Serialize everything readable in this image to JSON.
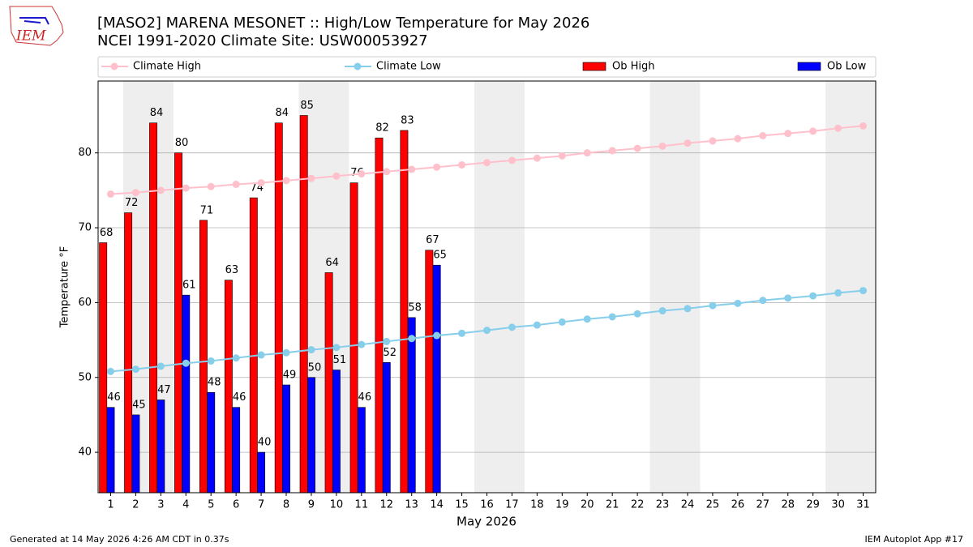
{
  "chart_data": {
    "type": "bar_line",
    "logo_text": "IEM",
    "title": "[MASO2] MARENA MESONET :: High/Low Temperature for May 2026",
    "subtitle": "NCEI 1991-2020 Climate Site: USW00053927",
    "ylabel": "Temperature °F",
    "xlabel": "May 2026",
    "footer_left": "Generated at 14 May 2026 4:26 AM CDT in 0.37s",
    "footer_right": "IEM Autoplot App #17",
    "x": [
      1,
      2,
      3,
      4,
      5,
      6,
      7,
      8,
      9,
      10,
      11,
      12,
      13,
      14,
      15,
      16,
      17,
      18,
      19,
      20,
      21,
      22,
      23,
      24,
      25,
      26,
      27,
      28,
      29,
      30,
      31
    ],
    "xlim": [
      0.5,
      31.5
    ],
    "ylim": [
      34.6,
      89.6
    ],
    "yticks": [
      40,
      50,
      60,
      70,
      80
    ],
    "grid": true,
    "shaded_days": [
      2,
      3,
      9,
      10,
      16,
      17,
      23,
      24,
      30,
      31
    ],
    "series": [
      {
        "name": "Climate High",
        "kind": "line",
        "color": "#ffc0cb",
        "values": [
          74.5,
          74.7,
          75.0,
          75.3,
          75.5,
          75.8,
          76.0,
          76.3,
          76.6,
          76.9,
          77.2,
          77.5,
          77.8,
          78.1,
          78.4,
          78.7,
          79.0,
          79.3,
          79.6,
          80.0,
          80.3,
          80.6,
          80.9,
          81.3,
          81.6,
          81.9,
          82.3,
          82.6,
          82.9,
          83.3,
          83.6
        ]
      },
      {
        "name": "Climate Low",
        "kind": "line",
        "color": "#87ceeb",
        "values": [
          50.8,
          51.1,
          51.5,
          51.9,
          52.2,
          52.6,
          53.0,
          53.3,
          53.7,
          54.0,
          54.4,
          54.8,
          55.2,
          55.6,
          55.9,
          56.3,
          56.7,
          57.0,
          57.4,
          57.8,
          58.1,
          58.5,
          58.9,
          59.2,
          59.6,
          59.9,
          60.3,
          60.6,
          60.9,
          61.3,
          61.6
        ]
      },
      {
        "name": "Ob High",
        "kind": "bar",
        "color": "#ff0000",
        "values": [
          68,
          72,
          84,
          80,
          71,
          63,
          74,
          84,
          85,
          64,
          76,
          82,
          83,
          67,
          null,
          null,
          null,
          null,
          null,
          null,
          null,
          null,
          null,
          null,
          null,
          null,
          null,
          null,
          null,
          null,
          null
        ]
      },
      {
        "name": "Ob Low",
        "kind": "bar",
        "color": "#0000ff",
        "values": [
          46,
          45,
          47,
          61,
          48,
          46,
          40,
          49,
          50,
          51,
          46,
          52,
          58,
          65,
          null,
          null,
          null,
          null,
          null,
          null,
          null,
          null,
          null,
          null,
          null,
          null,
          null,
          null,
          null,
          null,
          null
        ]
      }
    ]
  }
}
